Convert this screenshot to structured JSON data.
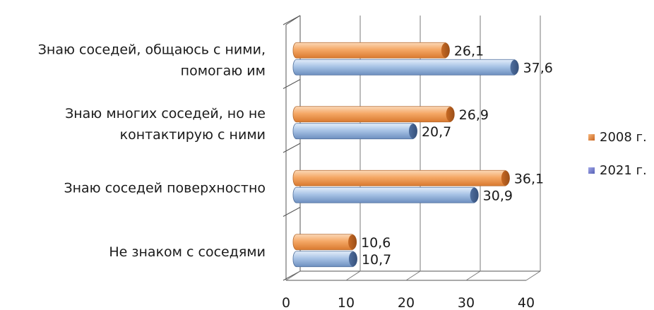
{
  "chart_data": {
    "type": "bar",
    "orientation": "horizontal",
    "categories": [
      [
        "Знаю соседей, общаюсь с ними,",
        "помогаю им"
      ],
      [
        "Знаю многих соседей, но не",
        "контактирую с ними"
      ],
      [
        "Знаю соседей поверхностно"
      ],
      [
        "Не знаком с соседями"
      ]
    ],
    "series": [
      {
        "name": "2008 г.",
        "values": [
          26.1,
          26.9,
          36.1,
          10.6
        ],
        "labels": [
          "26,1",
          "26,9",
          "36,1",
          "10,6"
        ],
        "color": "#f0a060"
      },
      {
        "name": "2021 г.",
        "values": [
          37.6,
          20.7,
          30.9,
          10.7
        ],
        "labels": [
          "37,6",
          "20,7",
          "30,9",
          "10,7"
        ],
        "color": "#9ab8e0"
      }
    ],
    "xlim": [
      0,
      40
    ],
    "xticks": [
      "0",
      "10",
      "20",
      "30",
      "40"
    ],
    "grid": true,
    "legend_position": "right"
  }
}
